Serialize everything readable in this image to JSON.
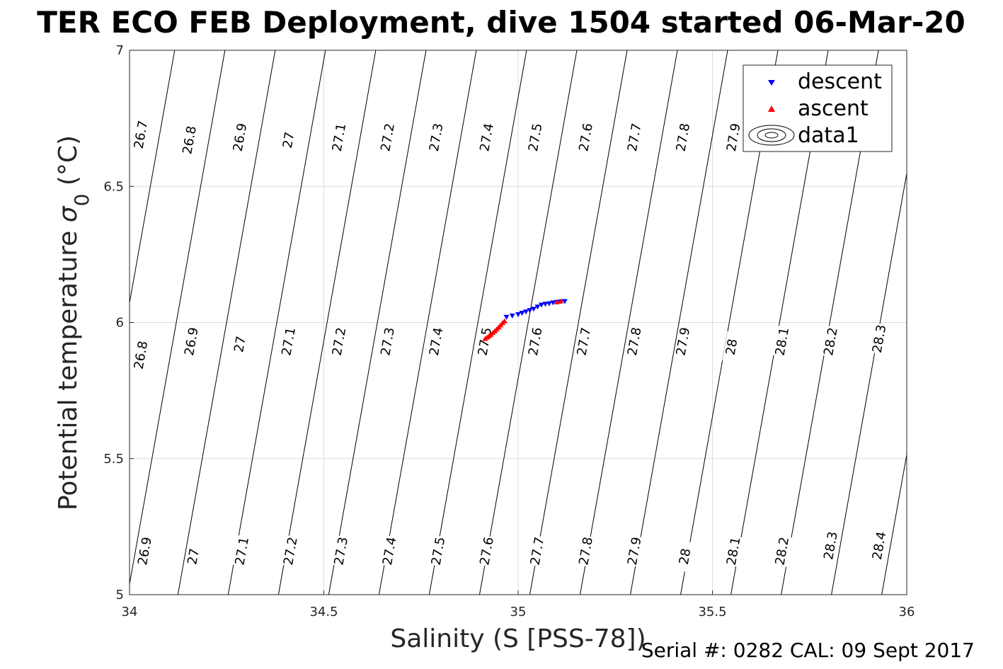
{
  "chart_data": {
    "type": "scatter",
    "title": "TER ECO FEB Deployment, dive 1504 started 06-Mar-20",
    "xlabel": "Salinity (S [PSS-78])",
    "ylabel_main": "Potential temperature ",
    "ylabel_sigma": "σ",
    "ylabel_sub": "0",
    "ylabel_unit": " (°C)",
    "xlim": [
      34,
      36
    ],
    "ylim": [
      5,
      7
    ],
    "xticks": [
      34,
      34.5,
      35,
      35.5,
      36
    ],
    "xtick_labels": [
      "34",
      "34.5",
      "35",
      "35.5",
      "36"
    ],
    "yticks": [
      5,
      5.5,
      6,
      6.5,
      7
    ],
    "ytick_labels": [
      "5",
      "5.5",
      "6",
      "6.5",
      "7"
    ],
    "grid": true,
    "legend_position": "top-right",
    "contour_color": "#000000",
    "isopycnals": [
      26.7,
      26.8,
      26.9,
      27.0,
      27.1,
      27.2,
      27.3,
      27.4,
      27.5,
      27.6,
      27.7,
      27.8,
      27.9,
      28.0,
      28.1,
      28.2,
      28.3,
      28.4
    ],
    "contour_labels": [
      {
        "text": "26.7",
        "s": 34.03,
        "t": 6.69
      },
      {
        "text": "26.8",
        "s": 34.155,
        "t": 6.67
      },
      {
        "text": "26.9",
        "s": 34.285,
        "t": 6.68
      },
      {
        "text": "27",
        "s": 34.41,
        "t": 6.67
      },
      {
        "text": "27.1",
        "s": 34.54,
        "t": 6.68
      },
      {
        "text": "27.2",
        "s": 34.665,
        "t": 6.68
      },
      {
        "text": "27.3",
        "s": 34.79,
        "t": 6.68
      },
      {
        "text": "27.4",
        "s": 34.92,
        "t": 6.68
      },
      {
        "text": "27.5",
        "s": 35.045,
        "t": 6.68
      },
      {
        "text": "27.6",
        "s": 35.175,
        "t": 6.68
      },
      {
        "text": "27.7",
        "s": 35.3,
        "t": 6.68
      },
      {
        "text": "27.8",
        "s": 35.425,
        "t": 6.68
      },
      {
        "text": "27.9",
        "s": 35.555,
        "t": 6.68
      },
      {
        "text": "26.8",
        "s": 34.03,
        "t": 5.88
      },
      {
        "text": "26.9",
        "s": 34.16,
        "t": 5.93
      },
      {
        "text": "27",
        "s": 34.285,
        "t": 5.92
      },
      {
        "text": "27.1",
        "s": 34.41,
        "t": 5.93
      },
      {
        "text": "27.2",
        "s": 34.54,
        "t": 5.93
      },
      {
        "text": "27.3",
        "s": 34.665,
        "t": 5.93
      },
      {
        "text": "27.4",
        "s": 34.79,
        "t": 5.93
      },
      {
        "text": "27.5",
        "s": 34.915,
        "t": 5.93
      },
      {
        "text": "27.6",
        "s": 35.045,
        "t": 5.93
      },
      {
        "text": "27.7",
        "s": 35.17,
        "t": 5.93
      },
      {
        "text": "27.8",
        "s": 35.3,
        "t": 5.93
      },
      {
        "text": "27.9",
        "s": 35.425,
        "t": 5.93
      },
      {
        "text": "28",
        "s": 35.55,
        "t": 5.91
      },
      {
        "text": "28.1",
        "s": 35.68,
        "t": 5.93
      },
      {
        "text": "28.2",
        "s": 35.805,
        "t": 5.93
      },
      {
        "text": "28.3",
        "s": 35.93,
        "t": 5.94
      },
      {
        "text": "26.9",
        "s": 34.04,
        "t": 5.16
      },
      {
        "text": "27",
        "s": 34.165,
        "t": 5.14
      },
      {
        "text": "27.1",
        "s": 34.29,
        "t": 5.16
      },
      {
        "text": "27.2",
        "s": 34.415,
        "t": 5.16
      },
      {
        "text": "27.3",
        "s": 34.545,
        "t": 5.16
      },
      {
        "text": "27.4",
        "s": 34.67,
        "t": 5.16
      },
      {
        "text": "27.5",
        "s": 34.795,
        "t": 5.16
      },
      {
        "text": "27.6",
        "s": 34.92,
        "t": 5.16
      },
      {
        "text": "27.7",
        "s": 35.05,
        "t": 5.16
      },
      {
        "text": "27.8",
        "s": 35.175,
        "t": 5.16
      },
      {
        "text": "27.9",
        "s": 35.3,
        "t": 5.16
      },
      {
        "text": "28",
        "s": 35.43,
        "t": 5.14
      },
      {
        "text": "28.1",
        "s": 35.555,
        "t": 5.16
      },
      {
        "text": "28.2",
        "s": 35.68,
        "t": 5.16
      },
      {
        "text": "28.3",
        "s": 35.805,
        "t": 5.18
      },
      {
        "text": "28.4",
        "s": 35.93,
        "t": 5.18
      }
    ],
    "series": [
      {
        "name": "descent",
        "marker": "triangle-down",
        "color": "#0000ff",
        "x": [
          34.97,
          34.985,
          35.0,
          35.01,
          35.02,
          35.03,
          35.04,
          35.05,
          35.06,
          35.07,
          35.08,
          35.09,
          35.1,
          35.11,
          35.12
        ],
        "y": [
          6.02,
          6.025,
          6.03,
          6.035,
          6.04,
          6.045,
          6.05,
          6.058,
          6.065,
          6.068,
          6.07,
          6.073,
          6.075,
          6.077,
          6.078
        ]
      },
      {
        "name": "ascent",
        "marker": "triangle-up",
        "color": "#ff0000",
        "x": [
          34.915,
          34.92,
          34.925,
          34.93,
          34.935,
          34.94,
          34.945,
          34.95,
          34.955,
          34.96,
          34.965,
          35.1,
          35.11
        ],
        "y": [
          5.94,
          5.945,
          5.95,
          5.955,
          5.962,
          5.968,
          5.975,
          5.982,
          5.99,
          5.998,
          6.005,
          6.075,
          6.078
        ]
      }
    ],
    "legend": [
      "descent",
      "ascent",
      "data1"
    ],
    "footer": "Serial #: 0282  CAL: 09 Sept 2017"
  }
}
